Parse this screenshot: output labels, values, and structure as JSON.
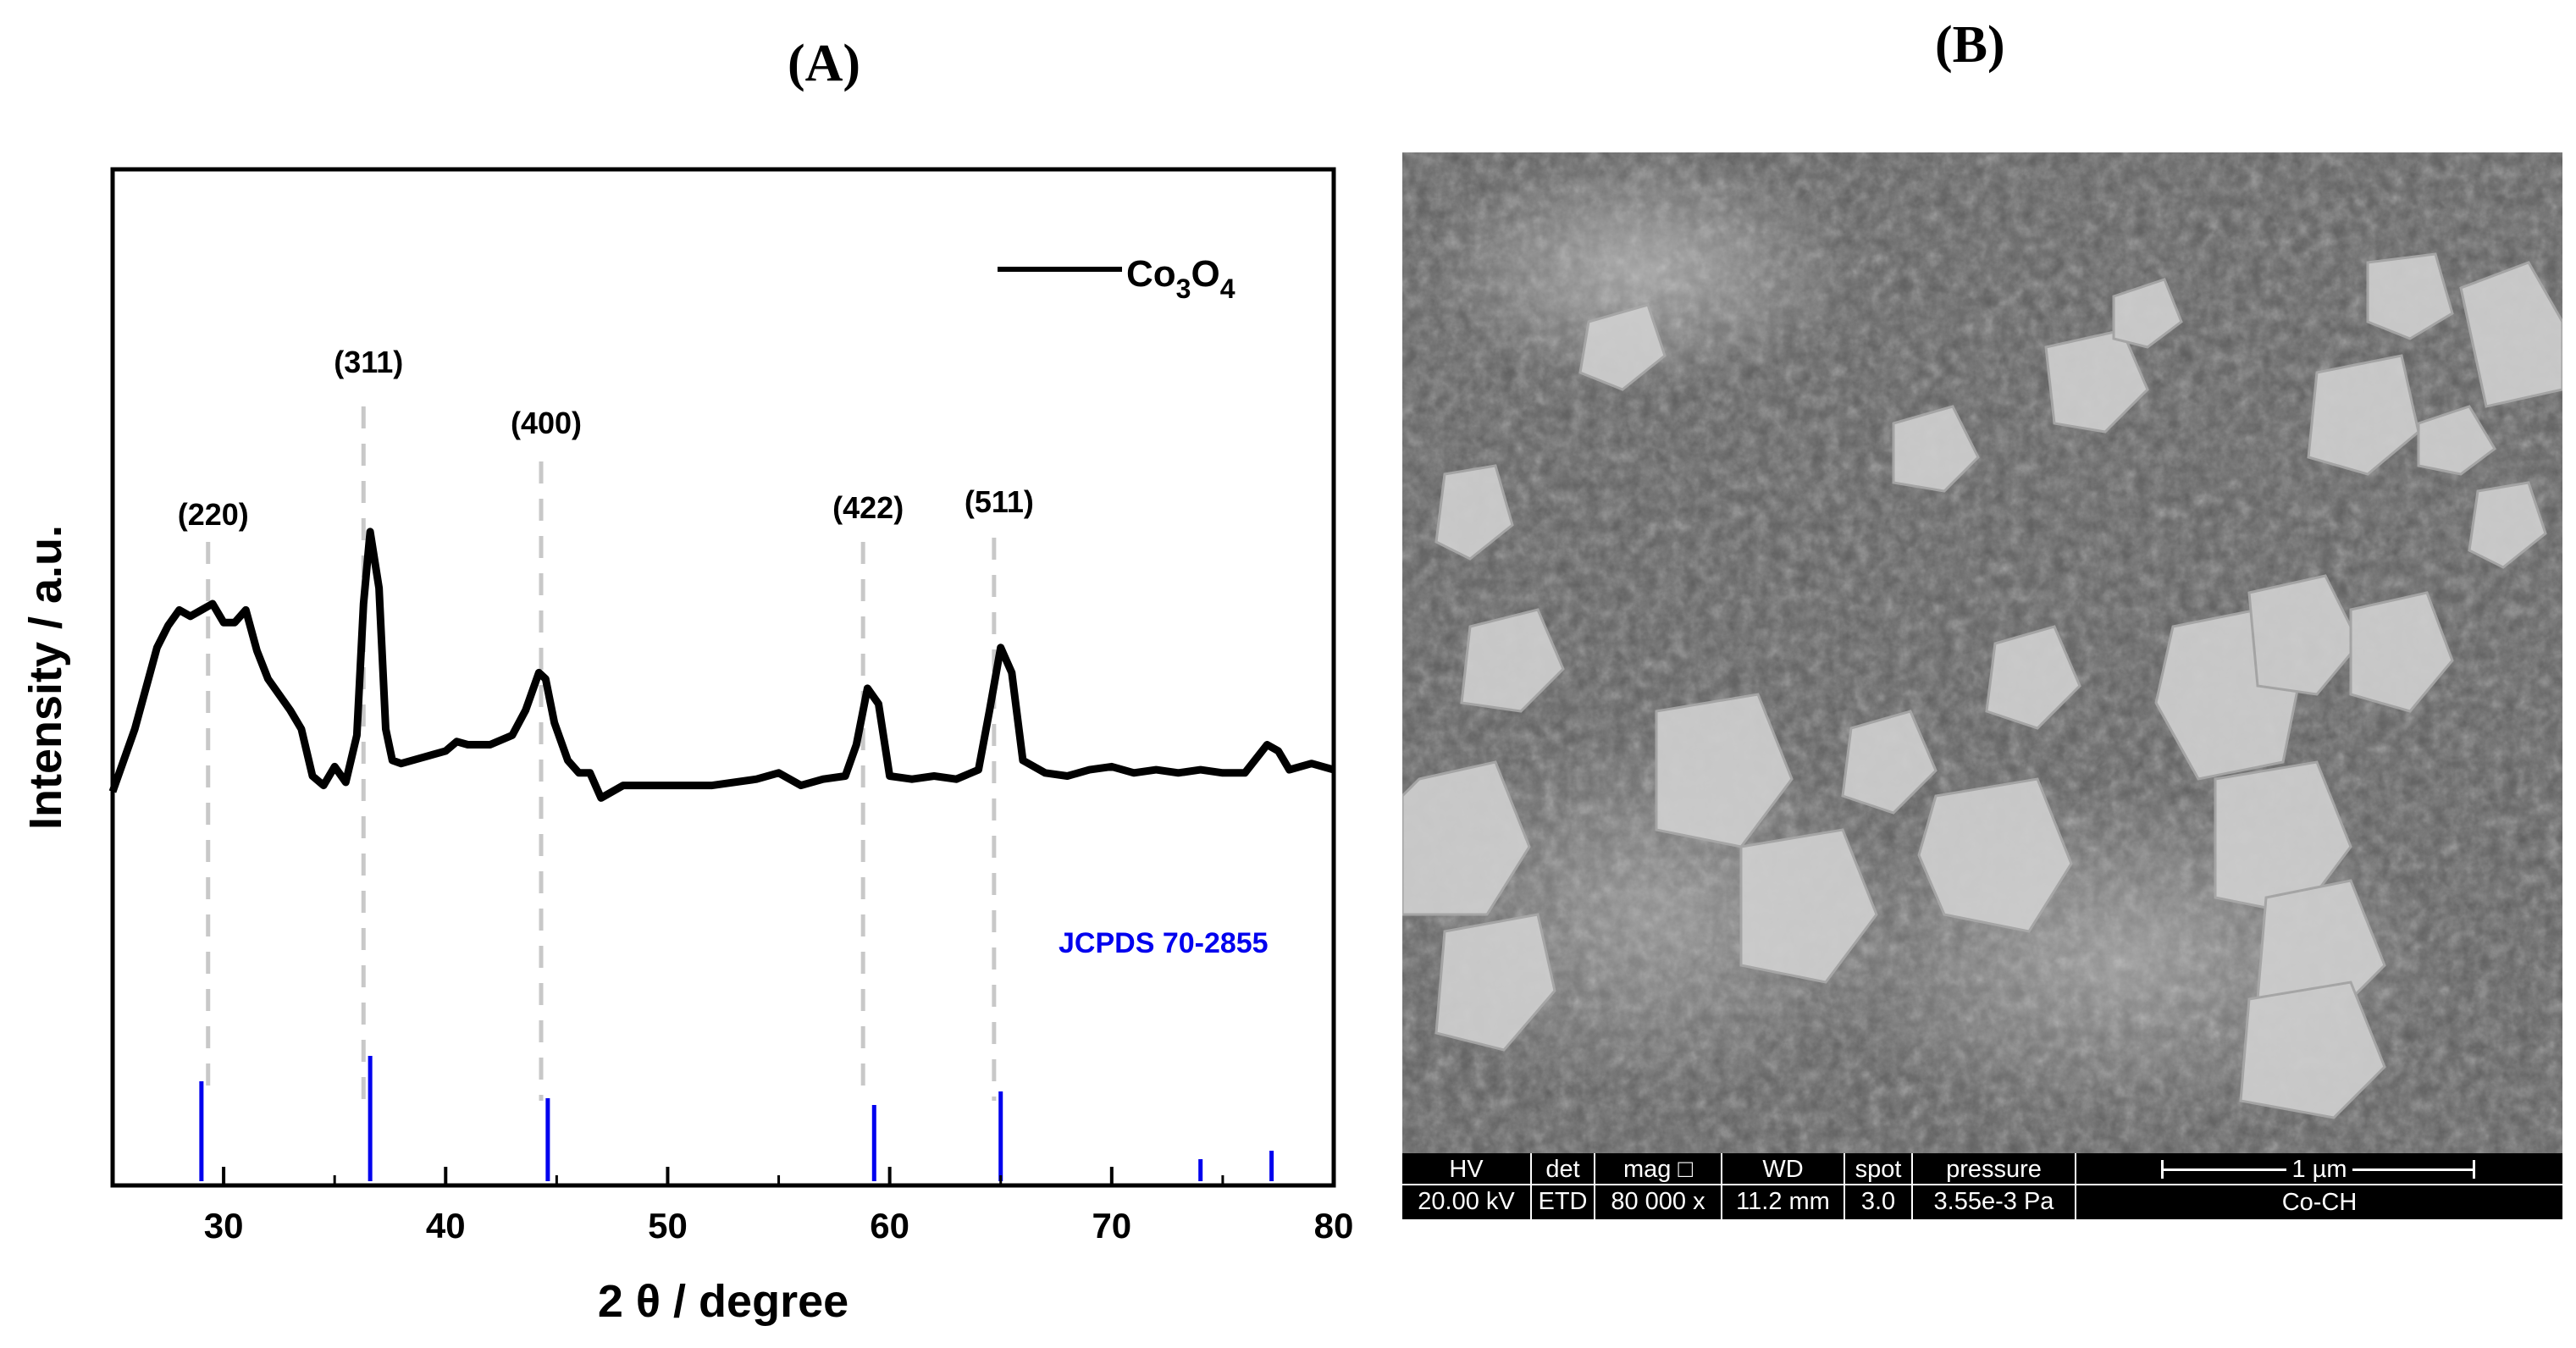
{
  "panels": {
    "a_label": "(A)",
    "b_label": "(B)"
  },
  "chart_data": {
    "type": "line",
    "xlabel": "2 θ / degree",
    "ylabel": "Intensity / a.u.",
    "xlim": [
      25,
      80
    ],
    "xticks": [
      30,
      40,
      50,
      60,
      70,
      80
    ],
    "yticks": "none",
    "grid": false,
    "legend": {
      "placement": "top-right",
      "label_main": "Co",
      "sub1": "3",
      "mid": "O",
      "sub2": "4"
    },
    "series": [
      {
        "name": "Co3O4",
        "color": "#000000",
        "x": [
          25,
          26,
          27,
          27.5,
          28,
          28.5,
          29,
          29.5,
          30,
          30.5,
          31,
          31.5,
          32,
          32.5,
          33,
          33.5,
          34,
          34.5,
          35,
          35.5,
          36,
          36.3,
          36.6,
          37,
          37.3,
          37.6,
          38,
          39,
          40,
          40.5,
          41,
          42,
          43,
          43.6,
          44.2,
          44.5,
          44.9,
          45.5,
          46,
          46.5,
          47,
          48,
          50,
          52,
          54,
          55,
          56,
          57,
          58,
          58.5,
          59,
          59.5,
          60,
          61,
          62,
          63,
          64,
          64.5,
          65,
          65.5,
          66,
          67,
          68,
          69,
          70,
          71,
          72,
          73,
          74,
          75,
          76,
          77,
          77.5,
          78,
          79,
          80
        ],
        "y": [
          0.0,
          0.2,
          0.46,
          0.53,
          0.58,
          0.56,
          0.58,
          0.6,
          0.54,
          0.54,
          0.58,
          0.45,
          0.36,
          0.31,
          0.26,
          0.2,
          0.05,
          0.02,
          0.08,
          0.03,
          0.18,
          0.6,
          0.83,
          0.65,
          0.2,
          0.1,
          0.09,
          0.11,
          0.13,
          0.16,
          0.15,
          0.15,
          0.18,
          0.26,
          0.38,
          0.36,
          0.22,
          0.1,
          0.06,
          0.06,
          -0.02,
          0.02,
          0.02,
          0.02,
          0.04,
          0.06,
          0.02,
          0.04,
          0.05,
          0.15,
          0.33,
          0.28,
          0.05,
          0.04,
          0.05,
          0.04,
          0.07,
          0.26,
          0.46,
          0.38,
          0.1,
          0.06,
          0.05,
          0.07,
          0.08,
          0.06,
          0.07,
          0.06,
          0.07,
          0.06,
          0.06,
          0.15,
          0.13,
          0.07,
          0.09,
          0.07
        ]
      }
    ],
    "peaks": [
      {
        "label": "(220)",
        "x": 29.3
      },
      {
        "label": "(311)",
        "x": 36.3
      },
      {
        "label": "(400)",
        "x": 44.3
      },
      {
        "label": "(422)",
        "x": 58.8
      },
      {
        "label": "(511)",
        "x": 64.7
      }
    ],
    "reference": {
      "label": "JCPDS 70-2855",
      "color": "#0000ee",
      "x": [
        29.0,
        36.6,
        44.6,
        59.3,
        65.0,
        74.0,
        77.2
      ],
      "intensity": [
        0.59,
        0.74,
        0.49,
        0.45,
        0.53,
        0.13,
        0.18
      ]
    }
  },
  "sem": {
    "fields": [
      {
        "key": "HV",
        "value": "20.00 kV"
      },
      {
        "key": "det",
        "value": "ETD"
      },
      {
        "key": "mag □",
        "value": "80 000 x"
      },
      {
        "key": "WD",
        "value": "11.2 mm"
      },
      {
        "key": "spot",
        "value": "3.0"
      },
      {
        "key": "pressure",
        "value": "3.55e-3 Pa"
      }
    ],
    "scale_label": "1 µm",
    "sample": "Co-CH"
  }
}
